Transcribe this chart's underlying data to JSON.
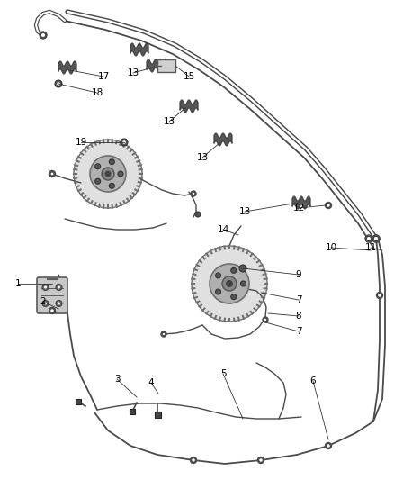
{
  "bg_color": "#ffffff",
  "line_color": "#3a3a3a",
  "label_color": "#000000",
  "figsize": [
    4.38,
    5.33
  ],
  "dpi": 100,
  "tube_color": "#4a4a4a",
  "part_color": "#5a5a5a",
  "hub_outer_color": "#707070",
  "hub_inner_color": "#909090",
  "caliper_color": "#606060"
}
